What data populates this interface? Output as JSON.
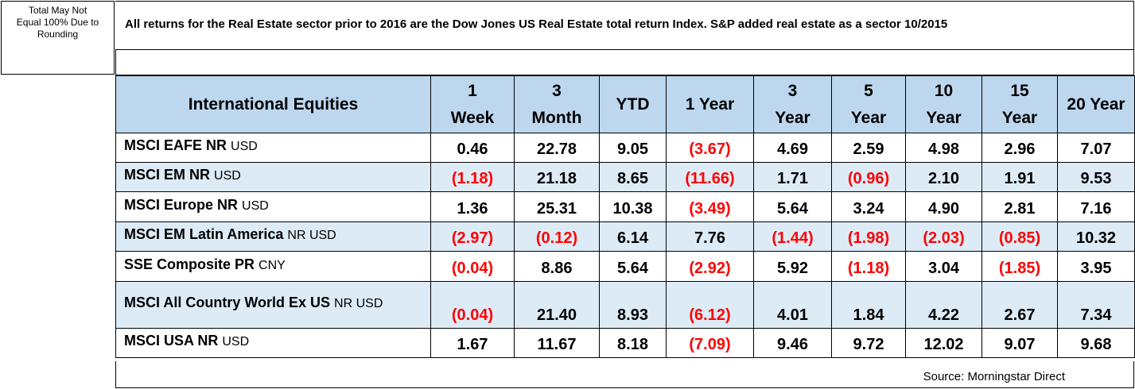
{
  "note": {
    "lines": [
      "Total May Not",
      "Equal 100% Due to",
      "Rounding"
    ]
  },
  "disclaimer": "All returns for the Real Estate sector prior to 2016 are the Dow Jones US Real Estate total return Index. S&P added real estate as a sector 10/2015",
  "table": {
    "title": "International Equities",
    "columns": [
      {
        "line1": "1",
        "line2": "Week"
      },
      {
        "line1": "3",
        "line2": "Month"
      },
      {
        "line1": "YTD",
        "line2": ""
      },
      {
        "line1": "1 Year",
        "line2": ""
      },
      {
        "line1": "3",
        "line2": "Year"
      },
      {
        "line1": "5",
        "line2": "Year"
      },
      {
        "line1": "10",
        "line2": "Year"
      },
      {
        "line1": "15",
        "line2": "Year"
      },
      {
        "line1": "20 Year",
        "line2": ""
      }
    ],
    "rows": [
      {
        "name": "MSCI EAFE NR",
        "unit": "USD",
        "values": [
          "0.46",
          "22.78",
          "9.05",
          "(3.67)",
          "4.69",
          "2.59",
          "4.98",
          "2.96",
          "7.07"
        ]
      },
      {
        "name": "MSCI EM NR",
        "unit": "USD",
        "values": [
          "(1.18)",
          "21.18",
          "8.65",
          "(11.66)",
          "1.71",
          "(0.96)",
          "2.10",
          "1.91",
          "9.53"
        ]
      },
      {
        "name": "MSCI Europe NR",
        "unit": "USD",
        "values": [
          "1.36",
          "25.31",
          "10.38",
          "(3.49)",
          "5.64",
          "3.24",
          "4.90",
          "2.81",
          "7.16"
        ]
      },
      {
        "name": "MSCI EM Latin America",
        "unit": "NR USD",
        "values": [
          "(2.97)",
          "(0.12)",
          "6.14",
          "7.76",
          "(1.44)",
          "(1.98)",
          "(2.03)",
          "(0.85)",
          "10.32"
        ]
      },
      {
        "name": "SSE Composite PR",
        "unit": "CNY",
        "values": [
          "(0.04)",
          "8.86",
          "5.64",
          "(2.92)",
          "5.92",
          "(1.18)",
          "3.04",
          "(1.85)",
          "3.95"
        ]
      },
      {
        "name": "MSCI All Country World Ex US",
        "unit": "NR USD",
        "values": [
          "(0.04)",
          "21.40",
          "8.93",
          "(6.12)",
          "4.01",
          "1.84",
          "4.22",
          "2.67",
          "7.34"
        ]
      },
      {
        "name": "MSCI USA NR",
        "unit": "USD",
        "values": [
          "1.67",
          "11.67",
          "8.18",
          "(7.09)",
          "9.46",
          "9.72",
          "12.02",
          "9.07",
          "9.68"
        ]
      }
    ]
  },
  "source": "Source: Morningstar Direct",
  "colors": {
    "header_fill": "#bdd7ee",
    "band_fill": "#ddebf7",
    "negative_text": "#ff0000"
  }
}
